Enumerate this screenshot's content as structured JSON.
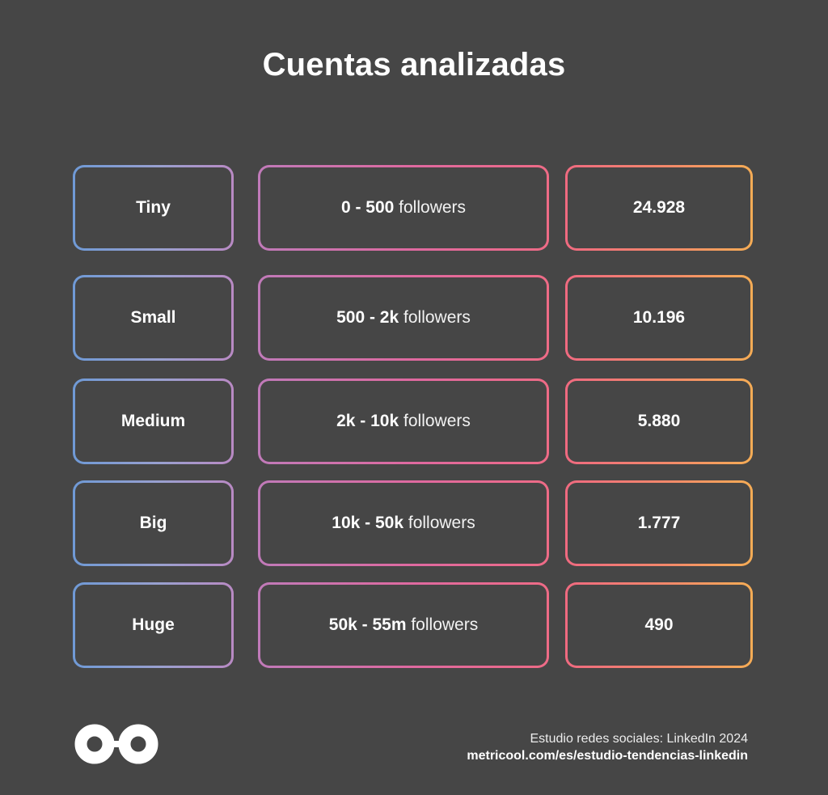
{
  "title": "Cuentas analizadas",
  "chart_data": {
    "type": "table",
    "title": "Cuentas analizadas",
    "columns": [
      "",
      "",
      ""
    ],
    "rows": [
      {
        "category": "Tiny",
        "range": "0 - 500",
        "unit": "followers",
        "accounts": "24.928"
      },
      {
        "category": "Small",
        "range": "500 - 2k",
        "unit": "followers",
        "accounts": "10.196"
      },
      {
        "category": "Medium",
        "range": "2k - 10k",
        "unit": "followers",
        "accounts": "5.880"
      },
      {
        "category": "Big",
        "range": "10k - 50k",
        "unit": "followers",
        "accounts": "1.777"
      },
      {
        "category": "Huge",
        "range": "50k - 55m",
        "unit": "followers",
        "accounts": "490"
      }
    ]
  },
  "footer": {
    "logo_icon": "metricool-infinity-logo",
    "source": "Estudio redes sociales: LinkedIn 2024",
    "url": "metricool.com/es/estudio-tendencias-linkedin"
  },
  "colors": {
    "background": "#464646",
    "gradient_left": "#6f9ad6",
    "gradient_mid": "#e0699f",
    "gradient_right": "#f5ac55"
  }
}
